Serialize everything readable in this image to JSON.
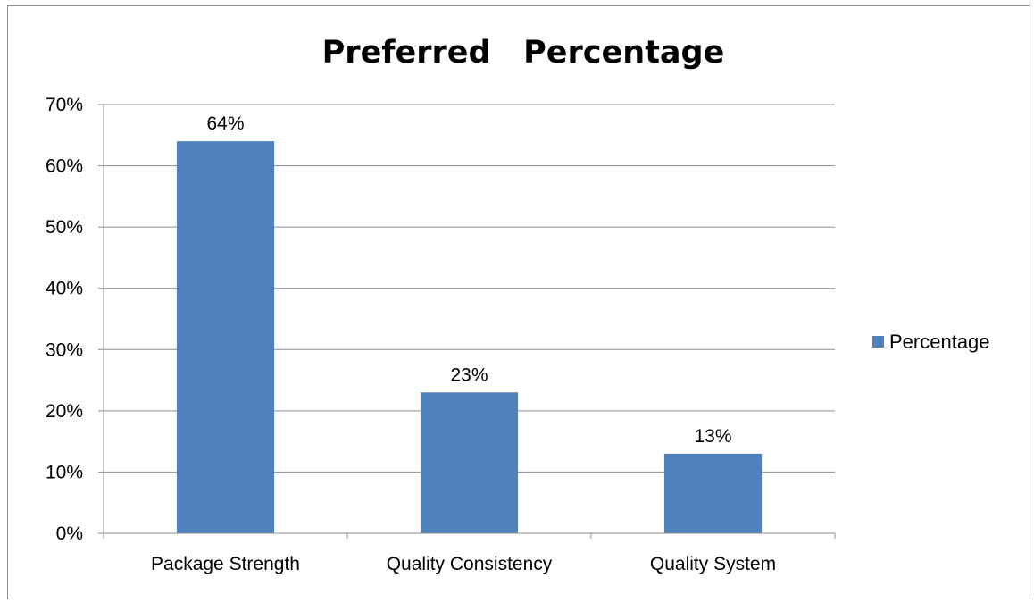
{
  "chart_data": {
    "type": "bar",
    "title": "Preferred   Percentage",
    "categories": [
      "Package Strength",
      "Quality Consistency",
      "Quality System"
    ],
    "series": [
      {
        "name": "Percentage",
        "values": [
          0.64,
          0.23,
          0.13
        ],
        "data_labels": [
          "64%",
          "23%",
          "13%"
        ],
        "color": "#4F81BD"
      }
    ],
    "ylim": [
      0,
      0.7
    ],
    "yticks": [
      0,
      0.1,
      0.2,
      0.3,
      0.4,
      0.5,
      0.6,
      0.7
    ],
    "ytick_labels": [
      "0%",
      "10%",
      "20%",
      "30%",
      "40%",
      "50%",
      "60%",
      "70%"
    ],
    "xlabel": "",
    "ylabel": "",
    "grid": true,
    "legend": "right"
  }
}
